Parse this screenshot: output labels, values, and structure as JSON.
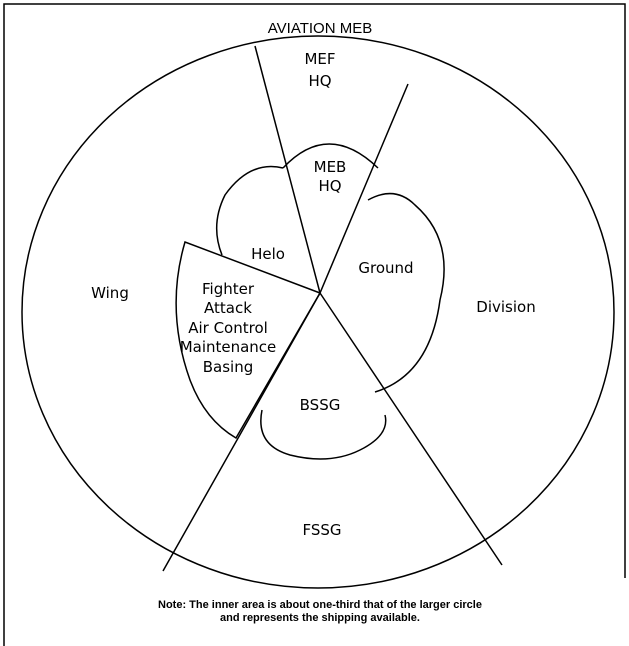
{
  "title": "AVIATION MEB",
  "regions": {
    "mef_hq": [
      "MEF",
      "HQ"
    ],
    "meb_hq": [
      "MEB",
      "HQ"
    ],
    "helo": "Helo",
    "ground": "Ground",
    "wing": "Wing",
    "division": "Division",
    "fighter": [
      "Fighter",
      "Attack",
      "Air Control",
      "Maintenance",
      "Basing"
    ],
    "bssg": "BSSG",
    "fssg": "FSSG"
  },
  "note": [
    "Note: The inner area is about one-third that of the larger circle",
    "and represents the shipping available."
  ]
}
